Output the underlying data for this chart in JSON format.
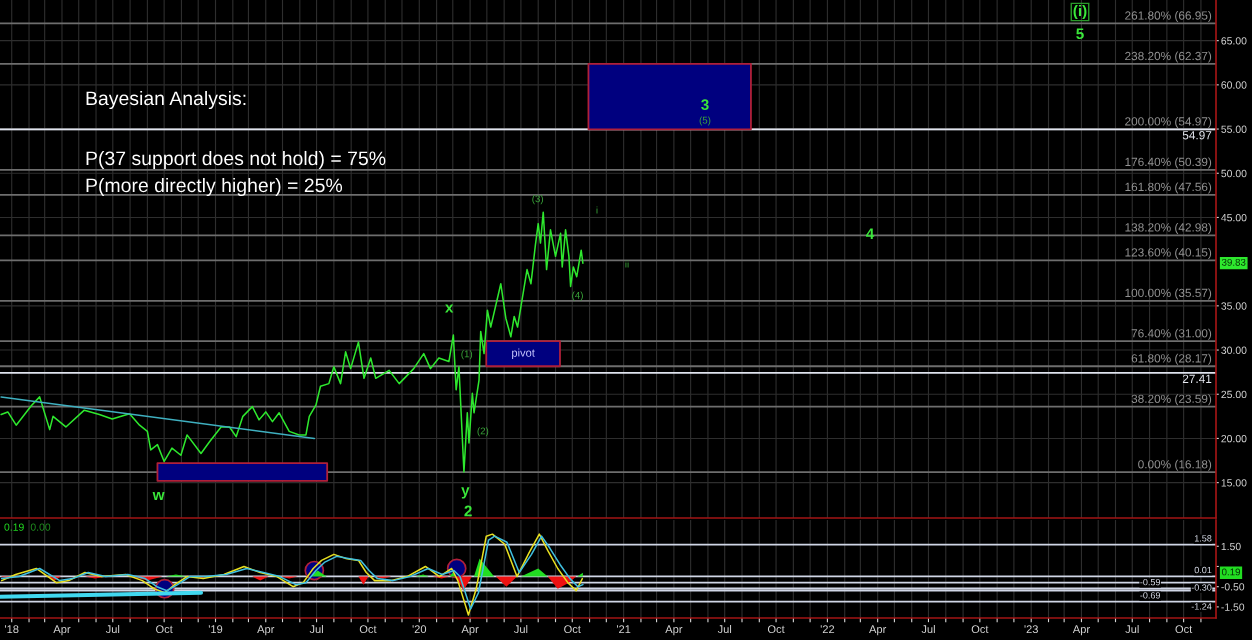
{
  "chart_data": [
    {
      "type": "line",
      "annotations": [
        "Bayesian Analysis:",
        "P(37 support does not hold) = 75%",
        "P(more directly higher) = 25%",
        "39.83",
        "3",
        "(5)",
        "4",
        "(i)",
        "5",
        "i",
        "ii",
        "pivot",
        {
          "text": "w",
          "x": "2018-10-01",
          "y": 17.4
        },
        {
          "text": "x",
          "x": "2020-03-02",
          "y": 31.7
        },
        {
          "text": "y",
          "x": "2020-03-21",
          "y": 16.2
        },
        {
          "text": "2",
          "x": "2020-03-21",
          "y": 16.2
        },
        {
          "text": "(1)",
          "x": "2020-03-26",
          "y": 27.9
        },
        {
          "text": "(2)",
          "x": "2020-03-30",
          "y": 19.5
        },
        {
          "text": "(3)",
          "x": "2020-08-10",
          "y": 45.6
        },
        {
          "text": "(4)",
          "x": "2020-09-28",
          "y": 37.2
        }
      ],
      "x": [
        "2017-12-13",
        "2017-12-25",
        "2018-01-09",
        "2018-02-05",
        "2018-02-20",
        "2018-03-10",
        "2018-03-16",
        "2018-04-08",
        "2018-05-11",
        "2018-06-07",
        "2018-06-30",
        "2018-07-31",
        "2018-08-18",
        "2018-09-01",
        "2018-09-07",
        "2018-09-19",
        "2018-10-01",
        "2018-10-15",
        "2018-10-31",
        "2018-11-11",
        "2018-12-06",
        "2018-12-21",
        "2019-01-11",
        "2019-01-26",
        "2019-02-07",
        "2019-02-19",
        "2019-03-08",
        "2019-03-20",
        "2019-04-01",
        "2019-04-13",
        "2019-04-25",
        "2019-05-13",
        "2019-05-31",
        "2019-06-12",
        "2019-06-18",
        "2019-06-30",
        "2019-07-08",
        "2019-07-23",
        "2019-08-01",
        "2019-08-13",
        "2019-08-22",
        "2019-08-31",
        "2019-09-14",
        "2019-09-24",
        "2019-10-06",
        "2019-10-15",
        "2019-11-08",
        "2019-11-26",
        "2019-12-22",
        "2020-01-09",
        "2020-01-21",
        "2020-02-05",
        "2020-02-23",
        "2020-03-02",
        "2020-03-07",
        "2020-03-12",
        "2020-03-21",
        "2020-03-27",
        "2020-03-30",
        "2020-04-05",
        "2020-04-08",
        "2020-04-17",
        "2020-04-20",
        "2020-04-26",
        "2020-05-02",
        "2020-05-08",
        "2020-05-26",
        "2020-06-04",
        "2020-06-13",
        "2020-06-19",
        "2020-06-25",
        "2020-07-06",
        "2020-07-12",
        "2020-07-19",
        "2020-07-27",
        "2020-08-01",
        "2020-08-05",
        "2020-08-10",
        "2020-08-16",
        "2020-08-23",
        "2020-09-01",
        "2020-09-10",
        "2020-09-13",
        "2020-09-19",
        "2020-09-25",
        "2020-09-28",
        "2020-10-03",
        "2020-10-09",
        "2020-10-17",
        "2020-10-20"
      ],
      "series": [
        {
          "color": "#2ee82e",
          "values": [
            22.7,
            23.0,
            21.5,
            23.7,
            24.7,
            21.0,
            22.5,
            21.3,
            23.2,
            22.7,
            22.2,
            22.8,
            21.5,
            20.8,
            18.7,
            19.3,
            17.4,
            18.9,
            18.1,
            20.4,
            18.3,
            19.6,
            21.3,
            21.3,
            20.2,
            22.5,
            23.6,
            22.1,
            23.0,
            21.9,
            22.9,
            20.8,
            20.4,
            20.4,
            22.5,
            23.8,
            25.9,
            26.2,
            28.1,
            26.2,
            29.8,
            27.9,
            30.9,
            26.8,
            29.1,
            26.8,
            27.7,
            26.2,
            27.9,
            29.6,
            27.9,
            29.1,
            28.7,
            31.7,
            25.5,
            28.1,
            16.2,
            22.9,
            19.5,
            25.1,
            22.9,
            26.6,
            32.1,
            29.6,
            34.5,
            32.6,
            37.5,
            33.6,
            31.5,
            33.8,
            32.6,
            36.8,
            39.1,
            37.5,
            41.9,
            44.3,
            42.1,
            45.6,
            39.1,
            43.6,
            40.6,
            43.2,
            39.4,
            43.6,
            40.6,
            37.2,
            39.4,
            38.3,
            41.3,
            39.83
          ]
        },
        {
          "color": "#3fb0c0",
          "x": [
            "2017-12-13",
            "2019-06-27"
          ],
          "values": [
            24.7,
            20.0
          ]
        },
        {
          "type": "area",
          "color": "#00007f",
          "x": [
            "2018-09-19",
            "2019-07-20"
          ],
          "values": [
            null,
            null
          ],
          "lower": [
            15.2,
            15.2
          ],
          "upper": [
            17.2,
            17.2
          ]
        },
        {
          "type": "area",
          "color": "#00007f",
          "x": [
            "2020-04-30",
            "2020-09-09"
          ],
          "values": [
            null,
            null
          ],
          "lower": [
            28.17,
            28.17
          ],
          "upper": [
            31.0,
            31.0
          ]
        },
        {
          "type": "area",
          "color": "#00007f",
          "x": [
            "2020-10-30",
            "2021-08-17"
          ],
          "values": [
            null,
            null
          ],
          "lower": [
            54.97,
            54.97
          ],
          "upper": [
            62.37,
            62.37
          ]
        }
      ],
      "xlim": [
        "2017-12-11",
        "2023-11-28"
      ],
      "xticks": [
        {
          "value": "2018-01-01",
          "label": null
        },
        {
          "value": "2018-02-01",
          "label": null
        },
        {
          "value": "2018-03-01",
          "label": null
        },
        {
          "value": "2018-04-01",
          "label": null
        },
        {
          "value": "2018-05-01",
          "label": null
        },
        {
          "value": "2018-06-01",
          "label": null
        },
        {
          "value": "2018-07-01",
          "label": null
        },
        {
          "value": "2018-08-01",
          "label": null
        },
        {
          "value": "2018-09-01",
          "label": null
        },
        {
          "value": "2018-10-01",
          "label": null
        },
        {
          "value": "2018-11-01",
          "label": null
        },
        {
          "value": "2018-12-01",
          "label": null
        },
        {
          "value": "2019-01-01",
          "label": null
        },
        {
          "value": "2019-02-01",
          "label": null
        },
        {
          "value": "2019-03-01",
          "label": null
        },
        {
          "value": "2019-04-01",
          "label": null
        },
        {
          "value": "2019-05-01",
          "label": null
        },
        {
          "value": "2019-06-01",
          "label": null
        },
        {
          "value": "2019-07-01",
          "label": null
        },
        {
          "value": "2019-08-01",
          "label": null
        },
        {
          "value": "2019-09-01",
          "label": null
        },
        {
          "value": "2019-10-01",
          "label": null
        },
        {
          "value": "2019-11-01",
          "label": null
        },
        {
          "value": "2019-12-01",
          "label": null
        },
        {
          "value": "2020-01-01",
          "label": null
        },
        {
          "value": "2020-02-01",
          "label": null
        },
        {
          "value": "2020-03-01",
          "label": null
        },
        {
          "value": "2020-04-01",
          "label": null
        },
        {
          "value": "2020-05-01",
          "label": null
        },
        {
          "value": "2020-06-01",
          "label": null
        },
        {
          "value": "2020-07-01",
          "label": null
        },
        {
          "value": "2020-08-01",
          "label": null
        },
        {
          "value": "2020-09-01",
          "label": null
        },
        {
          "value": "2020-10-01",
          "label": null
        },
        {
          "value": "2020-11-01",
          "label": null
        },
        {
          "value": "2020-12-01",
          "label": null
        },
        {
          "value": "2021-01-01",
          "label": null
        },
        {
          "value": "2021-02-01",
          "label": null
        },
        {
          "value": "2021-03-01",
          "label": null
        },
        {
          "value": "2021-04-01",
          "label": null
        },
        {
          "value": "2021-05-01",
          "label": null
        },
        {
          "value": "2021-06-01",
          "label": null
        },
        {
          "value": "2021-07-01",
          "label": null
        },
        {
          "value": "2021-08-01",
          "label": null
        },
        {
          "value": "2021-09-01",
          "label": null
        },
        {
          "value": "2021-10-01",
          "label": null
        },
        {
          "value": "2021-11-01",
          "label": null
        },
        {
          "value": "2021-12-01",
          "label": null
        },
        {
          "value": "2022-01-01",
          "label": null
        },
        {
          "value": "2022-02-01",
          "label": null
        },
        {
          "value": "2022-03-01",
          "label": null
        },
        {
          "value": "2022-04-01",
          "label": null
        },
        {
          "value": "2022-05-01",
          "label": null
        },
        {
          "value": "2022-06-01",
          "label": null
        },
        {
          "value": "2022-07-01",
          "label": null
        },
        {
          "value": "2022-08-01",
          "label": null
        },
        {
          "value": "2022-09-01",
          "label": null
        },
        {
          "value": "2022-10-01",
          "label": null
        },
        {
          "value": "2022-11-01",
          "label": null
        },
        {
          "value": "2022-12-01",
          "label": null
        },
        {
          "value": "2023-01-01",
          "label": null
        },
        {
          "value": "2023-02-01",
          "label": null
        },
        {
          "value": "2023-03-01",
          "label": null
        },
        {
          "value": "2023-04-01",
          "label": null
        },
        {
          "value": "2023-05-01",
          "label": null
        },
        {
          "value": "2023-06-01",
          "label": null
        },
        {
          "value": "2023-07-01",
          "label": null
        },
        {
          "value": "2023-08-01",
          "label": null
        },
        {
          "value": "2023-09-01",
          "label": null
        },
        {
          "value": "2023-10-01",
          "label": null
        },
        {
          "value": "2023-11-01",
          "label": null
        }
      ],
      "ylim": [
        11.0,
        69.6
      ],
      "yticks": [
        {
          "value": 15,
          "label": "15.00"
        },
        {
          "value": 20,
          "label": "20.00"
        },
        {
          "value": 25,
          "label": "25.00"
        },
        {
          "value": 30,
          "label": "30.00"
        },
        {
          "value": 35,
          "label": "35.00"
        },
        {
          "value": 45,
          "label": "45.00"
        },
        {
          "value": 50,
          "label": "50.00"
        },
        {
          "value": 55,
          "label": "55.00"
        },
        {
          "value": 60,
          "label": "60.00"
        },
        {
          "value": 65,
          "label": "65.00"
        }
      ],
      "ref_lines": [
        {
          "axis": "y",
          "value": 66.95,
          "label": "261.80% (66.95)",
          "color": "#6e6e6e"
        },
        {
          "axis": "y",
          "value": 62.37,
          "label": "238.20% (62.37)",
          "color": "#6e6e6e"
        },
        {
          "axis": "y",
          "value": 54.97,
          "label": "200.00% (54.97)",
          "color": "#6e6e6e"
        },
        {
          "axis": "y",
          "value": 50.39,
          "label": "176.40% (50.39)",
          "color": "#6e6e6e"
        },
        {
          "axis": "y",
          "value": 47.56,
          "label": "161.80% (47.56)",
          "color": "#6e6e6e"
        },
        {
          "axis": "y",
          "value": 42.98,
          "label": "138.20% (42.98)",
          "color": "#6e6e6e"
        },
        {
          "axis": "y",
          "value": 40.15,
          "label": "123.60% (40.15)",
          "color": "#6e6e6e"
        },
        {
          "axis": "y",
          "value": 35.57,
          "label": "100.00% (35.57)",
          "color": "#6e6e6e"
        },
        {
          "axis": "y",
          "value": 31.0,
          "label": "76.40% (31.00)",
          "color": "#6e6e6e"
        },
        {
          "axis": "y",
          "value": 28.17,
          "label": "61.80% (28.17)",
          "color": "#6e6e6e"
        },
        {
          "axis": "y",
          "value": 23.59,
          "label": "38.20% (23.59)",
          "color": "#6e6e6e"
        },
        {
          "axis": "y",
          "value": 16.18,
          "label": "0.00% (16.18)",
          "color": "#6e6e6e"
        },
        {
          "axis": "y",
          "value": 54.97,
          "label": "54.97",
          "color": "#dfe3ee"
        },
        {
          "axis": "y",
          "value": 27.41,
          "label": "27.41",
          "color": "#dfe3ee"
        }
      ],
      "grid": true,
      "tick_labels": "y"
    },
    {
      "type": "line",
      "annotations": [
        "0.19",
        "0.00",
        "0.19"
      ],
      "series": [
        {
          "type": "area",
          "color": "#22dd22",
          "x": [
            "2018-10-04",
            "2018-10-22",
            "2018-11-11",
            "2019-06-20",
            "2019-07-03",
            "2019-07-19",
            "2019-12-25",
            "2020-01-08",
            "2020-01-18",
            "2020-02-24",
            "2020-03-01",
            "2020-03-06",
            "2020-04-08",
            "2020-04-18",
            "2020-05-14",
            "2020-07-01",
            "2020-08-01",
            "2020-08-18",
            "2020-10-10",
            "2020-10-20"
          ],
          "values": [
            0,
            0.1,
            0,
            0,
            0.3,
            0,
            0,
            0.1,
            0,
            0,
            0.2,
            0,
            0,
            0.9,
            0,
            0,
            0.4,
            0,
            0,
            0.19
          ]
        },
        {
          "type": "area",
          "color": "#ee1111",
          "x": [
            "2017-12-12",
            "2017-12-25",
            "2018-01-10",
            "2018-03-08",
            "2018-03-19",
            "2018-03-30",
            "2018-05-12",
            "2018-05-30",
            "2018-06-19",
            "2018-08-02",
            "2018-09-01",
            "2018-09-28",
            "2018-11-24",
            "2018-12-06",
            "2018-12-17",
            "2019-03-08",
            "2019-03-22",
            "2019-04-06",
            "2019-04-28",
            "2019-05-13",
            "2019-05-28",
            "2019-09-14",
            "2019-09-23",
            "2019-10-02",
            "2019-10-13",
            "2019-10-28",
            "2019-11-12",
            "2020-01-25",
            "2020-02-10",
            "2020-02-24",
            "2020-03-07",
            "2020-03-20",
            "2020-04-04",
            "2020-05-17",
            "2020-06-05",
            "2020-06-24",
            "2020-08-18",
            "2020-09-05",
            "2020-09-25",
            "2020-10-08"
          ],
          "values": [
            0,
            -0.1,
            0,
            0,
            -0.2,
            0,
            0,
            -0.1,
            0,
            0,
            -0.2,
            0,
            0,
            -0.1,
            0,
            0,
            -0.2,
            0,
            0,
            -0.1,
            0,
            0,
            -0.4,
            0,
            0,
            -0.1,
            0,
            0,
            -0.1,
            0,
            0,
            -0.7,
            0,
            0,
            -0.5,
            0,
            0,
            -0.6,
            -0.3,
            0
          ]
        },
        {
          "type": "scatter",
          "marker": "circle",
          "color": "#00007f",
          "x": [
            "2018-10-02",
            "2019-06-27",
            "2020-03-08"
          ],
          "values": [
            -0.6,
            0.3,
            0.4
          ]
        },
        {
          "color": "#e8e020",
          "x": [
            "2017-12-14",
            "2018-01-08",
            "2018-02-14",
            "2018-03-22",
            "2018-04-13",
            "2018-05-12",
            "2018-06-11",
            "2018-07-24",
            "2018-08-23",
            "2018-09-13",
            "2018-10-02",
            "2018-10-20",
            "2018-11-11",
            "2018-12-10",
            "2019-01-16",
            "2019-02-21",
            "2019-03-22",
            "2019-04-21",
            "2019-05-20",
            "2019-06-07",
            "2019-06-25",
            "2019-07-10",
            "2019-08-01",
            "2019-08-22",
            "2019-09-14",
            "2019-09-28",
            "2019-10-13",
            "2019-11-11",
            "2019-12-10",
            "2020-01-12",
            "2020-02-06",
            "2020-02-28",
            "2020-03-10",
            "2020-03-29",
            "2020-04-12",
            "2020-04-30",
            "2020-05-11",
            "2020-06-02",
            "2020-06-24",
            "2020-07-16",
            "2020-08-03",
            "2020-08-18",
            "2020-09-05",
            "2020-09-23",
            "2020-10-08",
            "2020-10-19"
          ],
          "values": [
            -0.2,
            0.1,
            0.4,
            -0.3,
            -0.2,
            0.2,
            0.0,
            0.1,
            -0.2,
            -0.6,
            -0.8,
            -0.4,
            0.0,
            -0.1,
            0.1,
            0.5,
            0.2,
            0.0,
            -0.5,
            -0.3,
            0.4,
            0.8,
            1.1,
            0.9,
            0.8,
            0.2,
            -0.2,
            -0.2,
            0.0,
            0.5,
            0.0,
            0.4,
            -0.2,
            -1.9,
            -0.6,
            2.0,
            2.1,
            1.6,
            0.0,
            1.2,
            2.1,
            1.3,
            0.4,
            -0.3,
            -0.7,
            -0.1
          ]
        },
        {
          "color": "#40c0e0",
          "x": [
            "2017-12-14",
            "2018-01-14",
            "2018-02-20",
            "2018-03-28",
            "2018-04-20",
            "2018-05-18",
            "2018-06-18",
            "2018-07-28",
            "2018-08-28",
            "2018-09-18",
            "2018-10-06",
            "2018-10-25",
            "2018-11-16",
            "2018-12-15",
            "2019-01-20",
            "2019-02-26",
            "2019-03-28",
            "2019-04-26",
            "2019-05-25",
            "2019-06-12",
            "2019-06-30",
            "2019-07-15",
            "2019-08-06",
            "2019-08-27",
            "2019-09-18",
            "2019-10-03",
            "2019-10-18",
            "2019-11-15",
            "2019-12-15",
            "2020-01-17",
            "2020-02-11",
            "2020-03-03",
            "2020-03-14",
            "2020-04-02",
            "2020-04-16",
            "2020-05-04",
            "2020-05-15",
            "2020-06-06",
            "2020-06-28",
            "2020-07-20",
            "2020-08-07",
            "2020-08-22",
            "2020-09-09",
            "2020-09-27",
            "2020-10-11",
            "2020-10-20"
          ],
          "values": [
            -0.1,
            0.0,
            0.4,
            -0.2,
            -0.1,
            0.2,
            0.0,
            0.1,
            -0.1,
            -0.5,
            -0.7,
            -0.4,
            0.0,
            0.0,
            0.1,
            0.4,
            0.2,
            0.0,
            -0.4,
            -0.3,
            0.3,
            0.7,
            1.0,
            0.9,
            0.8,
            0.3,
            -0.1,
            -0.2,
            0.0,
            0.4,
            0.1,
            0.3,
            0.0,
            -1.6,
            -0.8,
            1.8,
            2.0,
            1.7,
            0.2,
            1.1,
            2.0,
            1.4,
            0.6,
            -0.1,
            -0.5,
            -0.4
          ]
        },
        {
          "color": "#40d8f0",
          "x": [
            "2017-12-11",
            "2018-12-06"
          ],
          "values": [
            -1.0,
            -0.8
          ]
        }
      ],
      "xlim": [
        "2017-12-11",
        "2023-11-28"
      ],
      "xticks": [
        {
          "value": "2018-01-01",
          "label": "'18"
        },
        {
          "value": "2018-02-01",
          "label": null
        },
        {
          "value": "2018-03-01",
          "label": null
        },
        {
          "value": "2018-04-01",
          "label": "Apr"
        },
        {
          "value": "2018-05-01",
          "label": null
        },
        {
          "value": "2018-06-01",
          "label": null
        },
        {
          "value": "2018-07-01",
          "label": "Jul"
        },
        {
          "value": "2018-08-01",
          "label": null
        },
        {
          "value": "2018-09-01",
          "label": null
        },
        {
          "value": "2018-10-01",
          "label": "Oct"
        },
        {
          "value": "2018-11-01",
          "label": null
        },
        {
          "value": "2018-12-01",
          "label": null
        },
        {
          "value": "2019-01-01",
          "label": "'19"
        },
        {
          "value": "2019-02-01",
          "label": null
        },
        {
          "value": "2019-03-01",
          "label": null
        },
        {
          "value": "2019-04-01",
          "label": "Apr"
        },
        {
          "value": "2019-05-01",
          "label": null
        },
        {
          "value": "2019-06-01",
          "label": null
        },
        {
          "value": "2019-07-01",
          "label": "Jul"
        },
        {
          "value": "2019-08-01",
          "label": null
        },
        {
          "value": "2019-09-01",
          "label": null
        },
        {
          "value": "2019-10-01",
          "label": "Oct"
        },
        {
          "value": "2019-11-01",
          "label": null
        },
        {
          "value": "2019-12-01",
          "label": null
        },
        {
          "value": "2020-01-01",
          "label": "'20"
        },
        {
          "value": "2020-02-01",
          "label": null
        },
        {
          "value": "2020-03-01",
          "label": null
        },
        {
          "value": "2020-04-01",
          "label": "Apr"
        },
        {
          "value": "2020-05-01",
          "label": null
        },
        {
          "value": "2020-06-01",
          "label": null
        },
        {
          "value": "2020-07-01",
          "label": "Jul"
        },
        {
          "value": "2020-08-01",
          "label": null
        },
        {
          "value": "2020-09-01",
          "label": null
        },
        {
          "value": "2020-10-01",
          "label": "Oct"
        },
        {
          "value": "2020-11-01",
          "label": null
        },
        {
          "value": "2020-12-01",
          "label": null
        },
        {
          "value": "2021-01-01",
          "label": "'21"
        },
        {
          "value": "2021-02-01",
          "label": null
        },
        {
          "value": "2021-03-01",
          "label": null
        },
        {
          "value": "2021-04-01",
          "label": "Apr"
        },
        {
          "value": "2021-05-01",
          "label": null
        },
        {
          "value": "2021-06-01",
          "label": null
        },
        {
          "value": "2021-07-01",
          "label": "Jul"
        },
        {
          "value": "2021-08-01",
          "label": null
        },
        {
          "value": "2021-09-01",
          "label": null
        },
        {
          "value": "2021-10-01",
          "label": "Oct"
        },
        {
          "value": "2021-11-01",
          "label": null
        },
        {
          "value": "2021-12-01",
          "label": null
        },
        {
          "value": "2022-01-01",
          "label": "'22"
        },
        {
          "value": "2022-02-01",
          "label": null
        },
        {
          "value": "2022-03-01",
          "label": null
        },
        {
          "value": "2022-04-01",
          "label": "Apr"
        },
        {
          "value": "2022-05-01",
          "label": null
        },
        {
          "value": "2022-06-01",
          "label": null
        },
        {
          "value": "2022-07-01",
          "label": "Jul"
        },
        {
          "value": "2022-08-01",
          "label": null
        },
        {
          "value": "2022-09-01",
          "label": null
        },
        {
          "value": "2022-10-01",
          "label": "Oct"
        },
        {
          "value": "2022-11-01",
          "label": null
        },
        {
          "value": "2022-12-01",
          "label": null
        },
        {
          "value": "2023-01-01",
          "label": "'23"
        },
        {
          "value": "2023-02-01",
          "label": null
        },
        {
          "value": "2023-03-01",
          "label": null
        },
        {
          "value": "2023-04-01",
          "label": "Apr"
        },
        {
          "value": "2023-05-01",
          "label": null
        },
        {
          "value": "2023-06-01",
          "label": null
        },
        {
          "value": "2023-07-01",
          "label": "Jul"
        },
        {
          "value": "2023-08-01",
          "label": null
        },
        {
          "value": "2023-09-01",
          "label": null
        },
        {
          "value": "2023-10-01",
          "label": "Oct"
        },
        {
          "value": "2023-11-01",
          "label": null
        }
      ],
      "ylim": [
        -2.05,
        2.8
      ],
      "yticks": [
        {
          "value": 1.5,
          "label": "1.50"
        },
        {
          "value": 0.5,
          "label": null
        },
        {
          "value": -0.5,
          "label": "-0.50"
        },
        {
          "value": -1.5,
          "label": "-1.50"
        }
      ],
      "ref_lines": [
        {
          "axis": "y",
          "value": 1.58,
          "label": "1.58",
          "color": "#d0d6e6"
        },
        {
          "axis": "y",
          "value": 0.01,
          "label": "0.01",
          "color": "#d0d6e6"
        },
        {
          "axis": "y",
          "value": -0.3,
          "label": "-0.30",
          "color": "#d0d6e6"
        },
        {
          "axis": "y",
          "value": -0.59,
          "label": "-0.59",
          "color": "#d0d6e6"
        },
        {
          "axis": "y",
          "value": -0.69,
          "label": "-0.69",
          "color": "#d0d6e6"
        },
        {
          "axis": "y",
          "value": -1.24,
          "label": "-1.24",
          "color": "#d0d6e6"
        }
      ],
      "grid": "x"
    }
  ]
}
